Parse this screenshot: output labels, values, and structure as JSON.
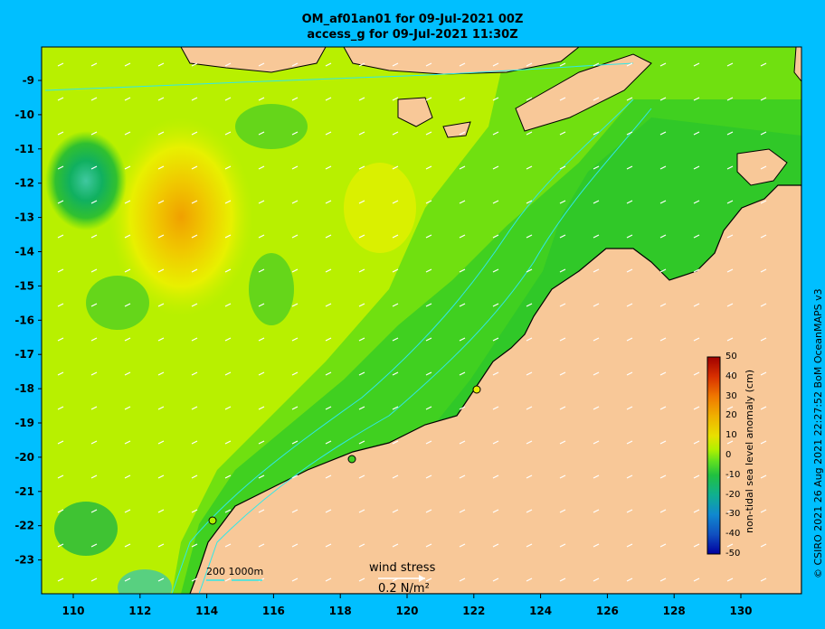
{
  "title_line1": "OM_af01an01 for 09-Jul-2021 00Z",
  "title_line2": "access_g for 09-Jul-2021 11:30Z",
  "lat_ticks": [
    "-9",
    "-10",
    "-11",
    "-12",
    "-13",
    "-14",
    "-15",
    "-16",
    "-17",
    "-18",
    "-19",
    "-20",
    "-21",
    "-22",
    "-23"
  ],
  "lon_ticks": [
    "110",
    "112",
    "114",
    "116",
    "118",
    "120",
    "122",
    "124",
    "126",
    "128",
    "130"
  ],
  "colorbar": {
    "label": "non-tidal sea level anomaly (cm)",
    "ticks": [
      "50",
      "40",
      "30",
      "20",
      "10",
      "0",
      "-10",
      "-20",
      "-30",
      "-40",
      "-50"
    ],
    "colors": [
      "#a00000",
      "#d83000",
      "#f07800",
      "#f0b000",
      "#e8e000",
      "#b0f000",
      "#60e020",
      "#20c040",
      "#10b090",
      "#1088d0",
      "#1050c0",
      "#0000a0"
    ]
  },
  "wind_stress": {
    "title": "wind stress",
    "value": "0.2 N/m²"
  },
  "depth_scale": "200  1000m",
  "credit": "© CSIRO 2021  26 Aug 2021 22:27:52 BoM OceanMAPS v3",
  "colors": {
    "land": "#f8c898",
    "ocean_green": "#40d020",
    "yellow": "#e8f000",
    "orange": "#f0b000"
  }
}
